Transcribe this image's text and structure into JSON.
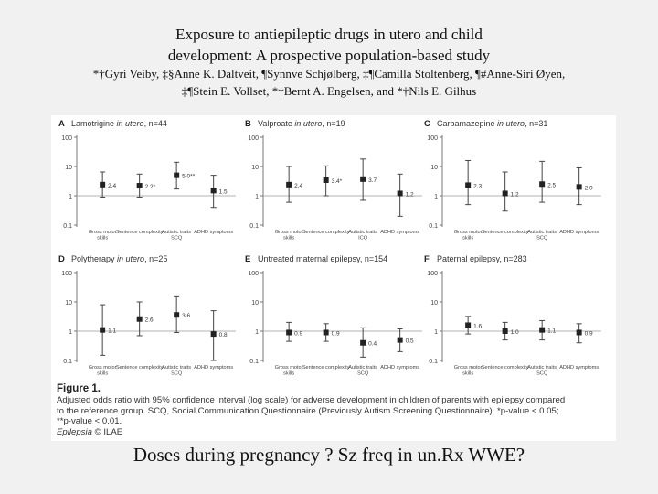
{
  "slide": {
    "title_line1": "Exposure to antiepileptic drugs in utero and child",
    "title_line2": "development: A prospective population-based study",
    "authors_line1": "*†Gyri Veiby, ‡§Anne K. Daltveit, ¶Synnve Schjølberg, ‡¶Camilla Stoltenberg, ¶#Anne-Siri Øyen,",
    "authors_line2": "‡¶Stein E. Vollset, *†Bernt A. Engelsen, and *†Nils E. Gilhus",
    "subtitle": "Doses during pregnancy ? Sz freq in un.Rx WWE?"
  },
  "figure": {
    "label": "Figure 1.",
    "caption_line1": "Adjusted odds ratio with 95% confidence interval (log scale) for adverse development in children of parents with epilepsy compared",
    "caption_line2": "to the reference group. SCQ, Social Communication Questionnaire (Previously Autism Screening Questionnaire). *p-value < 0.05;",
    "caption_line3": "**p-value < 0.01.",
    "journal": "Epilepsia",
    "copyright": " © ILAE"
  },
  "chart_data": [
    {
      "type": "scatter",
      "panel": "A",
      "title": "Lamotrigine in utero, n=44",
      "title_parts": [
        "Lamotrigine ",
        "in utero",
        ", n=44"
      ],
      "y_scale": "log",
      "ylim": [
        0.1,
        100
      ],
      "yticks": [
        "100",
        "10",
        "1",
        "0.1"
      ],
      "categories": [
        "Gross motor skills",
        "Sentence complexity",
        "Autistic traits SCQ",
        "ADHD symptoms"
      ],
      "values": [
        2.4,
        2.2,
        5.0,
        1.5
      ],
      "value_labels": [
        "2.4",
        "2.2*",
        "5.0**",
        "1.5"
      ],
      "ci_low": [
        0.9,
        0.9,
        1.7,
        0.4
      ],
      "ci_high": [
        6.5,
        5.5,
        14.0,
        5.0
      ]
    },
    {
      "type": "scatter",
      "panel": "B",
      "title": "Valproate in utero, n=19",
      "title_parts": [
        "Valproate ",
        "in utero",
        ", n=19"
      ],
      "y_scale": "log",
      "ylim": [
        0.1,
        100
      ],
      "yticks": [
        "100",
        "10",
        "1",
        "0.1"
      ],
      "categories": [
        "Gross motor skills",
        "Sentence complexity",
        "Autistic traits ICQ",
        "ADHD symptoms"
      ],
      "values": [
        2.4,
        3.4,
        3.7,
        1.2
      ],
      "value_labels": [
        "2.4",
        "3.4*",
        "3.7",
        "1.2"
      ],
      "ci_low": [
        0.6,
        1.0,
        0.7,
        0.2
      ],
      "ci_high": [
        10.0,
        10.5,
        18.0,
        5.5
      ]
    },
    {
      "type": "scatter",
      "panel": "C",
      "title": "Carbamazepine in utero, n=31",
      "title_parts": [
        "Carbamazepine ",
        "in utero",
        ", n=31"
      ],
      "y_scale": "log",
      "ylim": [
        0.1,
        100
      ],
      "yticks": [
        "100",
        "10",
        "1",
        "0.1"
      ],
      "categories": [
        "Gross motor skills",
        "Sentence complexity",
        "Autistic traits SCQ",
        "ADHD symptoms"
      ],
      "values": [
        2.3,
        1.2,
        2.5,
        2.0
      ],
      "value_labels": [
        "2.3",
        "1.2",
        "2.5",
        "2.0"
      ],
      "ci_low": [
        0.5,
        0.3,
        0.6,
        0.5
      ],
      "ci_high": [
        16.0,
        6.5,
        15.0,
        9.0
      ]
    },
    {
      "type": "scatter",
      "panel": "D",
      "title": "Polytherapy in utero, n=25",
      "title_parts": [
        "Polytherapy ",
        "in utero",
        ", n=25"
      ],
      "y_scale": "log",
      "ylim": [
        0.1,
        100
      ],
      "yticks": [
        "100",
        "10",
        "1",
        "0.1"
      ],
      "categories": [
        "Gross motor skills",
        "Sentence complexity",
        "Autistic traits SCQ",
        "ADHD symptoms"
      ],
      "values": [
        1.1,
        2.6,
        3.6,
        0.8
      ],
      "value_labels": [
        "1.1",
        "2.6",
        "3.6",
        "0.8"
      ],
      "ci_low": [
        0.15,
        0.7,
        0.9,
        0.1
      ],
      "ci_high": [
        8.0,
        10.0,
        15.0,
        5.0
      ]
    },
    {
      "type": "scatter",
      "panel": "E",
      "title": "Untreated maternal epilepsy, n=154",
      "title_parts": [
        "Untreated maternal epilepsy, n=154"
      ],
      "y_scale": "log",
      "ylim": [
        0.1,
        100
      ],
      "yticks": [
        "100",
        "10",
        "1",
        "0.1"
      ],
      "categories": [
        "Gross motor skills",
        "Sentence complexity",
        "Autistic traits SCQ",
        "ADHD symptoms"
      ],
      "values": [
        0.9,
        0.9,
        0.4,
        0.5
      ],
      "value_labels": [
        "0.9",
        "0.9",
        "0.4",
        "0.5"
      ],
      "ci_low": [
        0.45,
        0.45,
        0.13,
        0.2
      ],
      "ci_high": [
        2.0,
        1.8,
        1.3,
        1.2
      ]
    },
    {
      "type": "scatter",
      "panel": "F",
      "title": "Paternal epilepsy, n=283",
      "title_parts": [
        "Paternal epilepsy, n=283"
      ],
      "y_scale": "log",
      "ylim": [
        0.1,
        100
      ],
      "yticks": [
        "100",
        "10",
        "1",
        "0.1"
      ],
      "categories": [
        "Gross motor skills",
        "Sentence complexity",
        "Autistic traits SCQ",
        "ADHD symptoms"
      ],
      "values": [
        1.6,
        1.0,
        1.1,
        0.9
      ],
      "value_labels": [
        "1.6",
        "1.0",
        "1.1",
        "0.9"
      ],
      "ci_low": [
        0.8,
        0.5,
        0.5,
        0.4
      ],
      "ci_high": [
        3.2,
        2.0,
        2.3,
        1.8
      ]
    }
  ]
}
